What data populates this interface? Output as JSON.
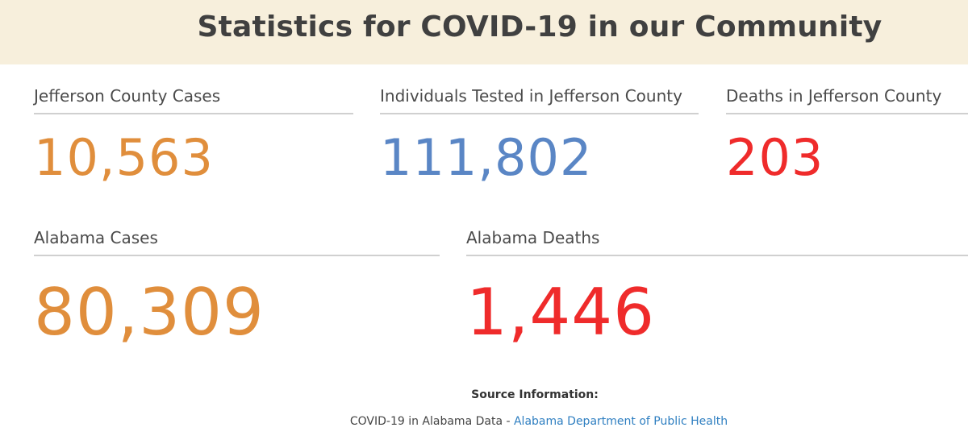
{
  "header": {
    "title": "Statistics for COVID-19 in our Community"
  },
  "colors": {
    "cases": "#e08e3c",
    "tested": "#5a86c5",
    "deaths": "#ef2b2b",
    "link": "#2f7fc1",
    "banner_bg": "#f7efdc"
  },
  "stats": {
    "county_cases": {
      "label": "Jefferson County Cases",
      "value": "10,563"
    },
    "county_tested": {
      "label": "Individuals Tested in Jefferson County",
      "value": "111,802"
    },
    "county_deaths": {
      "label": "Deaths in Jefferson County",
      "value": "203"
    },
    "state_cases": {
      "label": "Alabama Cases",
      "value": "80,309"
    },
    "state_deaths": {
      "label": "Alabama Deaths",
      "value": "1,446"
    }
  },
  "source": {
    "heading": "Source Information:",
    "prefix": "COVID-19 in Alabama Data - ",
    "link_text": "Alabama Department of Public Health"
  }
}
